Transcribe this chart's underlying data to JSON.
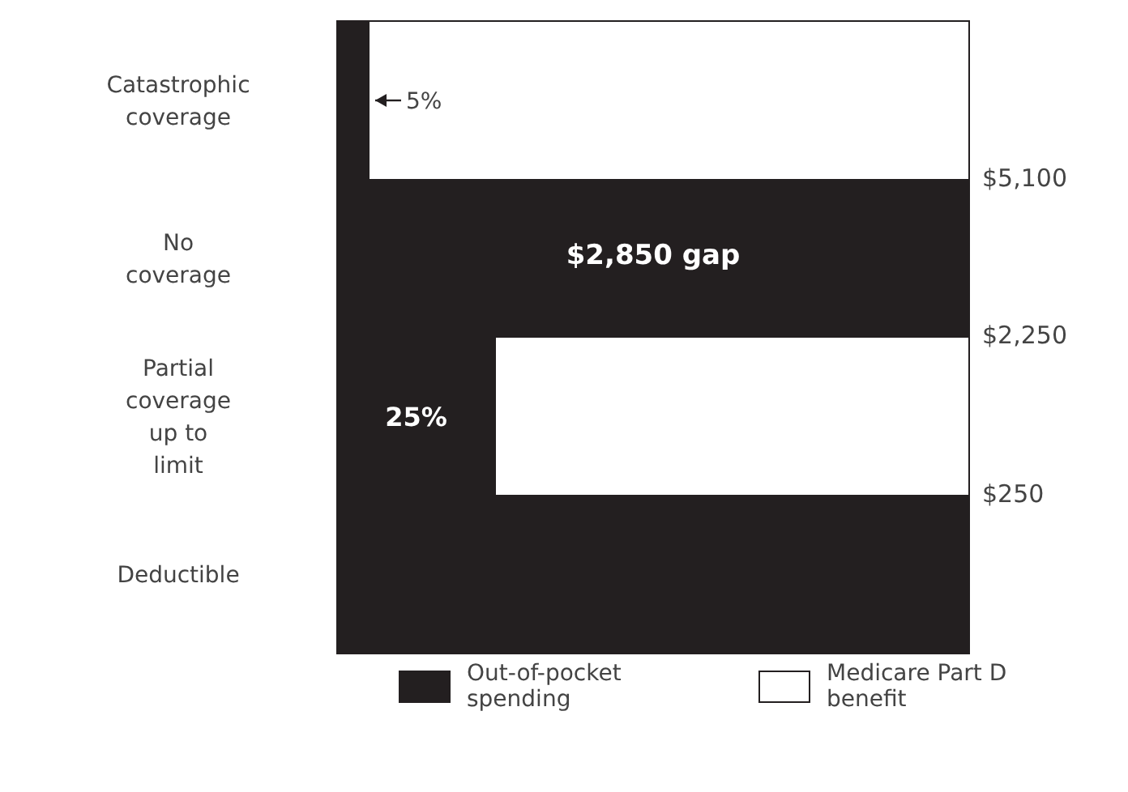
{
  "chart_data": {
    "type": "bar",
    "orientation": "horizontal",
    "stacked": true,
    "categories": [
      "Catastrophic coverage",
      "No coverage",
      "Partial coverage up to limit",
      "Deductible"
    ],
    "series": [
      {
        "name": "Out-of-pocket spending",
        "color": "#231f20",
        "values": [
          5,
          100,
          25,
          100
        ],
        "value_labels": [
          "5%",
          null,
          "25%",
          null
        ]
      },
      {
        "name": "Medicare Part D benefit",
        "color": "#ffffff",
        "values": [
          95,
          0,
          75,
          0
        ]
      }
    ],
    "annotations": [
      "$5,100",
      "$2,250",
      "$250",
      "$2,850 gap"
    ],
    "legend": "bottom"
  }
}
